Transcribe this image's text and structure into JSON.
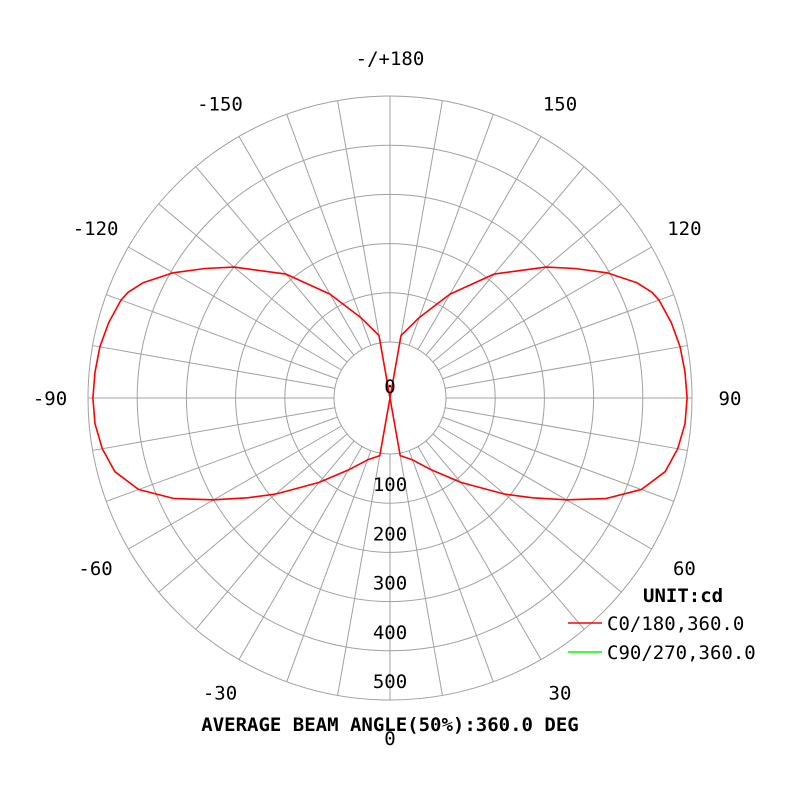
{
  "chart_data": {
    "type": "polar",
    "unit_label": "UNIT:cd",
    "footer": "AVERAGE BEAM ANGLE(50%):360.0 DEG",
    "r_max": 500,
    "ring_values": [
      0,
      100,
      200,
      300,
      400,
      500
    ],
    "radial_tick_labels": [
      "0",
      "100",
      "200",
      "300",
      "400",
      "500"
    ],
    "angle_labels": [
      {
        "angle": 0,
        "text": "0"
      },
      {
        "angle": 30,
        "text": "30"
      },
      {
        "angle": -30,
        "text": "-30"
      },
      {
        "angle": 60,
        "text": "60"
      },
      {
        "angle": -60,
        "text": "-60"
      },
      {
        "angle": 90,
        "text": "90"
      },
      {
        "angle": -90,
        "text": "-90"
      },
      {
        "angle": 120,
        "text": "120"
      },
      {
        "angle": -120,
        "text": "-120"
      },
      {
        "angle": 150,
        "text": "150"
      },
      {
        "angle": -150,
        "text": "-150"
      },
      {
        "angle": 180,
        "text": "-/+180"
      }
    ],
    "series": [
      {
        "name": "C0/180,360.0",
        "color": "#ff0000",
        "angles": [
          0,
          10,
          20,
          30,
          40,
          50,
          55,
          60,
          65,
          70,
          75,
          80,
          85,
          90,
          95,
          100,
          105,
          110,
          112,
          115,
          120,
          125,
          130,
          140,
          150,
          160,
          170,
          180
        ],
        "values": [
          0,
          5,
          20,
          55,
          110,
          190,
          240,
          300,
          370,
          430,
          465,
          480,
          488,
          490,
          488,
          485,
          478,
          468,
          460,
          440,
          395,
          345,
          300,
          215,
          130,
          60,
          15,
          0
        ]
      },
      {
        "name": "C90/270,360.0",
        "color": "#00ff00",
        "angles": [],
        "values": []
      }
    ]
  }
}
